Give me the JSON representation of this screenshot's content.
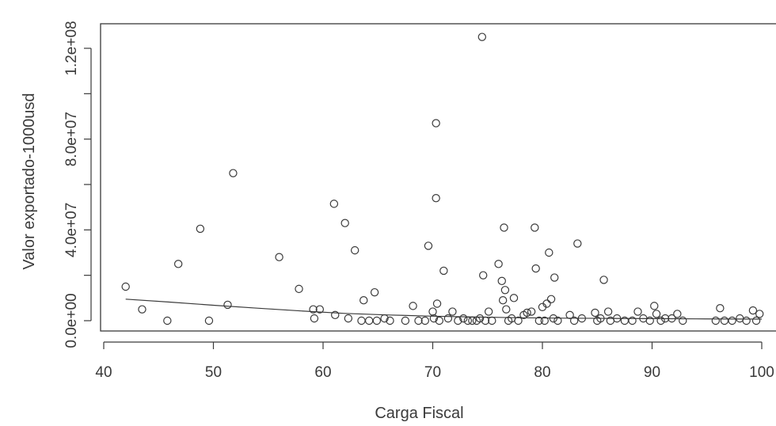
{
  "chart_data": {
    "type": "scatter",
    "title": "",
    "xlabel": "Carga Fiscal",
    "ylabel": "Valor exportado-1000usd",
    "xlim": [
      40,
      100
    ],
    "ylim": [
      0,
      120000000
    ],
    "x_ticks": [
      40,
      50,
      60,
      70,
      80,
      90,
      100
    ],
    "x_tick_labels": [
      "40",
      "50",
      "60",
      "70",
      "80",
      "90",
      "100"
    ],
    "y_ticks": [
      0,
      20000000,
      40000000,
      60000000,
      80000000,
      100000000,
      120000000
    ],
    "y_tick_labels": [
      "0.0e+00",
      "",
      "4.0e+07",
      "",
      "8.0e+07",
      "",
      "1.2e+08"
    ],
    "grid": false,
    "legend": "none",
    "colors": {
      "marker": "#3a3a3a",
      "axis": "#3a3a3a",
      "trend_line": "#3a3a3a"
    },
    "points": [
      [
        42,
        15000000
      ],
      [
        43.5,
        5000000
      ],
      [
        45.8,
        0
      ],
      [
        46.8,
        25000000
      ],
      [
        48.8,
        40500000
      ],
      [
        49.6,
        0
      ],
      [
        51.3,
        7000000
      ],
      [
        51.8,
        65000000
      ],
      [
        56,
        28000000
      ],
      [
        57.8,
        14000000
      ],
      [
        59.1,
        5000000
      ],
      [
        59.2,
        1000000
      ],
      [
        59.7,
        5000000
      ],
      [
        61,
        51500000
      ],
      [
        61.1,
        2500000
      ],
      [
        62,
        43000000
      ],
      [
        62.3,
        1000000
      ],
      [
        62.9,
        31000000
      ],
      [
        63.5,
        0
      ],
      [
        63.7,
        9000000
      ],
      [
        64.2,
        0
      ],
      [
        64.7,
        12500000
      ],
      [
        64.9,
        0
      ],
      [
        65.6,
        1000000
      ],
      [
        66.1,
        0
      ],
      [
        67.5,
        0
      ],
      [
        68.2,
        6500000
      ],
      [
        68.7,
        0
      ],
      [
        69.3,
        0
      ],
      [
        69.6,
        33000000
      ],
      [
        70,
        4000000
      ],
      [
        70.1,
        1000000
      ],
      [
        70.3,
        87000000
      ],
      [
        70.3,
        54000000
      ],
      [
        70.4,
        7500000
      ],
      [
        70.6,
        0
      ],
      [
        71,
        22000000
      ],
      [
        71.4,
        1000000
      ],
      [
        71.8,
        4000000
      ],
      [
        72.3,
        0
      ],
      [
        72.8,
        1000000
      ],
      [
        73.2,
        0
      ],
      [
        73.6,
        0
      ],
      [
        74,
        0
      ],
      [
        74.3,
        1000000
      ],
      [
        74.5,
        125000000
      ],
      [
        74.6,
        20000000
      ],
      [
        74.8,
        0
      ],
      [
        75.1,
        4000000
      ],
      [
        75.4,
        0
      ],
      [
        76,
        25000000
      ],
      [
        76.3,
        17500000
      ],
      [
        76.4,
        9000000
      ],
      [
        76.5,
        41000000
      ],
      [
        76.6,
        13500000
      ],
      [
        76.7,
        5000000
      ],
      [
        76.9,
        0
      ],
      [
        77.2,
        1000000
      ],
      [
        77.4,
        10000000
      ],
      [
        77.8,
        0
      ],
      [
        78.3,
        2500000
      ],
      [
        78.6,
        3500000
      ],
      [
        79,
        4000000
      ],
      [
        79.3,
        41000000
      ],
      [
        79.4,
        23000000
      ],
      [
        79.7,
        0
      ],
      [
        80,
        6000000
      ],
      [
        80.2,
        0
      ],
      [
        80.4,
        7500000
      ],
      [
        80.6,
        30000000
      ],
      [
        80.8,
        9500000
      ],
      [
        81,
        1000000
      ],
      [
        81.1,
        19000000
      ],
      [
        81.4,
        0
      ],
      [
        82.5,
        2500000
      ],
      [
        82.9,
        0
      ],
      [
        83.2,
        34000000
      ],
      [
        83.6,
        1000000
      ],
      [
        84.8,
        3500000
      ],
      [
        85,
        0
      ],
      [
        85.3,
        1000000
      ],
      [
        85.6,
        18000000
      ],
      [
        86,
        4000000
      ],
      [
        86.2,
        0
      ],
      [
        86.8,
        1000000
      ],
      [
        87.5,
        0
      ],
      [
        88.2,
        0
      ],
      [
        88.7,
        4000000
      ],
      [
        89.2,
        1000000
      ],
      [
        89.8,
        0
      ],
      [
        90.2,
        6500000
      ],
      [
        90.4,
        3000000
      ],
      [
        90.8,
        0
      ],
      [
        91.2,
        1000000
      ],
      [
        91.8,
        1000000
      ],
      [
        92.3,
        3000000
      ],
      [
        92.8,
        0
      ],
      [
        95.8,
        0
      ],
      [
        96.2,
        5500000
      ],
      [
        96.6,
        0
      ],
      [
        97.3,
        0
      ],
      [
        98,
        1000000
      ],
      [
        98.6,
        0
      ],
      [
        99.2,
        4500000
      ],
      [
        99.5,
        0
      ],
      [
        99.8,
        3000000
      ]
    ],
    "trend_line": [
      [
        42,
        9500000
      ],
      [
        46,
        8200000
      ],
      [
        50,
        6800000
      ],
      [
        54,
        5500000
      ],
      [
        58,
        4300000
      ],
      [
        62,
        3200000
      ],
      [
        66,
        2500000
      ],
      [
        70,
        2000000
      ],
      [
        74,
        1600000
      ],
      [
        78,
        1300000
      ],
      [
        82,
        1100000
      ],
      [
        86,
        1000000
      ],
      [
        90,
        900000
      ],
      [
        94,
        800000
      ],
      [
        100,
        700000
      ]
    ]
  }
}
